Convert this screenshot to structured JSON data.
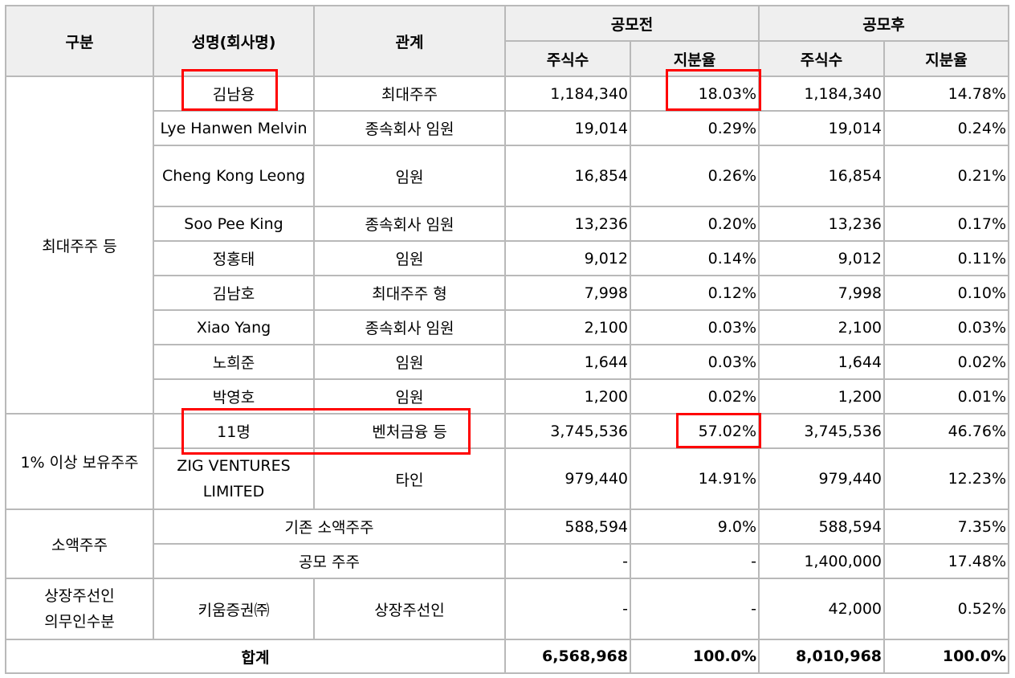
{
  "header": {
    "category": "구분",
    "name": "성명(회사명)",
    "relation": "관계",
    "before": "공모전",
    "after": "공모후",
    "shares": "주식수",
    "ratio": "지분율"
  },
  "groups": {
    "major": "최대주주 등",
    "over1": "1% 이상 보유주주",
    "minor": "소액주주",
    "underwriter": "상장주선인\n의무인수분",
    "total": "합계"
  },
  "rows": [
    {
      "name": "김남용",
      "relation": "최대주주",
      "before_shares": "1,184,340",
      "before_ratio": "18.03%",
      "after_shares": "1,184,340",
      "after_ratio": "14.78%"
    },
    {
      "name": "Lye Hanwen Melvin",
      "relation": "종속회사 임원",
      "before_shares": "19,014",
      "before_ratio": "0.29%",
      "after_shares": "19,014",
      "after_ratio": "0.24%"
    },
    {
      "name": "Cheng Kong Leong",
      "relation": "임원",
      "before_shares": "16,854",
      "before_ratio": "0.26%",
      "after_shares": "16,854",
      "after_ratio": "0.21%"
    },
    {
      "name": "Soo Pee King",
      "relation": "종속회사 임원",
      "before_shares": "13,236",
      "before_ratio": "0.20%",
      "after_shares": "13,236",
      "after_ratio": "0.17%"
    },
    {
      "name": "정홍태",
      "relation": "임원",
      "before_shares": "9,012",
      "before_ratio": "0.14%",
      "after_shares": "9,012",
      "after_ratio": "0.11%"
    },
    {
      "name": "김남호",
      "relation": "최대주주 형",
      "before_shares": "7,998",
      "before_ratio": "0.12%",
      "after_shares": "7,998",
      "after_ratio": "0.10%"
    },
    {
      "name": "Xiao Yang",
      "relation": "종속회사 임원",
      "before_shares": "2,100",
      "before_ratio": "0.03%",
      "after_shares": "2,100",
      "after_ratio": "0.03%"
    },
    {
      "name": "노희준",
      "relation": "임원",
      "before_shares": "1,644",
      "before_ratio": "0.03%",
      "after_shares": "1,644",
      "after_ratio": "0.02%"
    },
    {
      "name": "박영호",
      "relation": "임원",
      "before_shares": "1,200",
      "before_ratio": "0.02%",
      "after_shares": "1,200",
      "after_ratio": "0.01%"
    },
    {
      "name": "11명",
      "relation": "벤처금융 등",
      "before_shares": "3,745,536",
      "before_ratio": "57.02%",
      "after_shares": "3,745,536",
      "after_ratio": "46.76%"
    },
    {
      "name": "ZIG VENTURES LIMITED",
      "relation": "타인",
      "before_shares": "979,440",
      "before_ratio": "14.91%",
      "after_shares": "979,440",
      "after_ratio": "12.23%"
    },
    {
      "name": "기존 소액주주",
      "before_shares": "588,594",
      "before_ratio": "9.0%",
      "after_shares": "588,594",
      "after_ratio": "7.35%"
    },
    {
      "name": "공모 주주",
      "before_shares": "-",
      "before_ratio": "-",
      "after_shares": "1,400,000",
      "after_ratio": "17.48%"
    },
    {
      "name": "키움증권㈜",
      "relation": "상장주선인",
      "before_shares": "-",
      "before_ratio": "-",
      "after_shares": "42,000",
      "after_ratio": "0.52%"
    }
  ],
  "total": {
    "before_shares": "6,568,968",
    "before_ratio": "100.0%",
    "after_shares": "8,010,968",
    "after_ratio": "100.0%"
  },
  "highlight_color": "#ff0000"
}
